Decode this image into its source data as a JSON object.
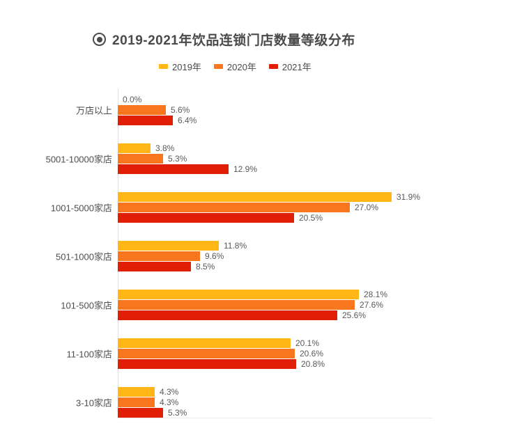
{
  "header": {
    "icon": "bullseye-icon",
    "title": "2019-2021年饮品连锁门店数量等级分布"
  },
  "chart_data": {
    "type": "bar",
    "orientation": "horizontal",
    "title": "2019-2021年饮品连锁门店数量等级分布",
    "categories": [
      "万店以上",
      "5001-10000家店",
      "1001-5000家店",
      "501-1000家店",
      "101-500家店",
      "11-100家店",
      "3-10家店"
    ],
    "series": [
      {
        "name": "2019年",
        "color": "#FFB616",
        "values": [
          0.0,
          3.8,
          31.9,
          11.8,
          28.1,
          20.1,
          4.3
        ],
        "labels": [
          "0.0%",
          "3.8%",
          "31.9%",
          "11.8%",
          "28.1%",
          "20.1%",
          "4.3%"
        ]
      },
      {
        "name": "2020年",
        "color": "#F8761D",
        "values": [
          5.6,
          5.3,
          27.0,
          9.6,
          27.6,
          20.6,
          4.3
        ],
        "labels": [
          "5.6%",
          "5.3%",
          "27.0%",
          "9.6%",
          "27.6%",
          "20.6%",
          "4.3%"
        ]
      },
      {
        "name": "2021年",
        "color": "#DF1E03",
        "values": [
          6.4,
          12.9,
          20.5,
          8.5,
          25.6,
          20.8,
          5.3
        ],
        "labels": [
          "6.4%",
          "12.9%",
          "20.5%",
          "8.5%",
          "25.6%",
          "20.8%",
          "5.3%"
        ]
      }
    ],
    "xlim": [
      0,
      36.6
    ],
    "grid": false,
    "legend_position": "top-center",
    "value_label_format": "{value}%",
    "colors": {
      "title_text": "#4a4a4a",
      "category_label": "#4d4d4d",
      "value_label": "#595959",
      "axis_line": "#e0e0e0",
      "baseline": "#ececec",
      "background": "#ffffff"
    }
  }
}
